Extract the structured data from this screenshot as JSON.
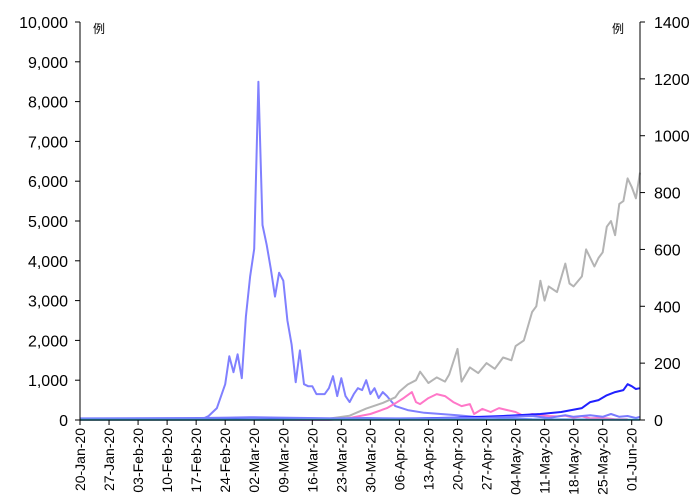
{
  "chart_data": {
    "type": "line",
    "y_left": {
      "unit_label": "例",
      "ticks": [
        "0",
        "1,000",
        "2,000",
        "3,000",
        "4,000",
        "5,000",
        "6,000",
        "7,000",
        "8,000",
        "9,000",
        "10,000"
      ],
      "ylim": [
        0,
        10000
      ]
    },
    "y_right": {
      "unit_label": "例",
      "ticks": [
        "0",
        "200",
        "400",
        "600",
        "800",
        "1000",
        "1200",
        "1400"
      ],
      "ylim": [
        0,
        1400
      ]
    },
    "x_ticks": [
      "20-Jan-20",
      "27-Jan-20",
      "03-Feb-20",
      "10-Feb-20",
      "17-Feb-20",
      "24-Feb-20",
      "02-Mar-20",
      "09-Mar-20",
      "16-Mar-20",
      "23-Mar-20",
      "30-Mar-20",
      "06-Apr-20",
      "13-Apr-20",
      "20-Apr-20",
      "27-Apr-20",
      "04-May-20",
      "11-May-20",
      "18-May-20",
      "25-May-20",
      "01-Jun-20"
    ],
    "xlim": [
      "20-Jan-20",
      "03-Jun-20"
    ],
    "grid": false,
    "series": [
      {
        "color": "#8080ff",
        "axis": "left",
        "points": [
          [
            "20-Jan-20",
            0
          ],
          [
            "18-Feb-20",
            0
          ],
          [
            "20-Feb-20",
            100
          ],
          [
            "22-Feb-20",
            300
          ],
          [
            "24-Feb-20",
            900
          ],
          [
            "25-Feb-20",
            1600
          ],
          [
            "26-Feb-20",
            1200
          ],
          [
            "27-Feb-20",
            1650
          ],
          [
            "28-Feb-20",
            1050
          ],
          [
            "29-Feb-20",
            2600
          ],
          [
            "01-Mar-20",
            3600
          ],
          [
            "02-Mar-20",
            4300
          ],
          [
            "03-Mar-20",
            8500
          ],
          [
            "04-Mar-20",
            4900
          ],
          [
            "05-Mar-20",
            4400
          ],
          [
            "06-Mar-20",
            3800
          ],
          [
            "07-Mar-20",
            3100
          ],
          [
            "08-Mar-20",
            3700
          ],
          [
            "09-Mar-20",
            3500
          ],
          [
            "10-Mar-20",
            2500
          ],
          [
            "11-Mar-20",
            1900
          ],
          [
            "12-Mar-20",
            950
          ],
          [
            "13-Mar-20",
            1750
          ],
          [
            "14-Mar-20",
            900
          ],
          [
            "15-Mar-20",
            850
          ],
          [
            "16-Mar-20",
            850
          ],
          [
            "17-Mar-20",
            650
          ],
          [
            "18-Mar-20",
            650
          ],
          [
            "19-Mar-20",
            650
          ],
          [
            "20-Mar-20",
            800
          ],
          [
            "21-Mar-20",
            1100
          ],
          [
            "22-Mar-20",
            600
          ],
          [
            "23-Mar-20",
            1050
          ],
          [
            "24-Mar-20",
            600
          ],
          [
            "25-Mar-20",
            450
          ],
          [
            "26-Mar-20",
            650
          ],
          [
            "27-Mar-20",
            800
          ],
          [
            "28-Mar-20",
            750
          ],
          [
            "29-Mar-20",
            1000
          ],
          [
            "30-Mar-20",
            650
          ],
          [
            "31-Mar-20",
            800
          ],
          [
            "01-Apr-20",
            550
          ],
          [
            "02-Apr-20",
            700
          ],
          [
            "03-Apr-20",
            600
          ],
          [
            "05-Apr-20",
            350
          ],
          [
            "08-Apr-20",
            250
          ],
          [
            "12-Apr-20",
            180
          ],
          [
            "16-Apr-20",
            150
          ],
          [
            "20-Apr-20",
            120
          ],
          [
            "24-Apr-20",
            80
          ],
          [
            "28-Apr-20",
            60
          ],
          [
            "02-May-20",
            40
          ],
          [
            "08-May-20",
            20
          ],
          [
            "31-May-20",
            10
          ]
        ]
      },
      {
        "color": "#ff77c8",
        "axis": "left",
        "points": [
          [
            "20-Jan-20",
            0
          ],
          [
            "20-Mar-20",
            0
          ],
          [
            "25-Mar-20",
            50
          ],
          [
            "30-Mar-20",
            150
          ],
          [
            "03-Apr-20",
            300
          ],
          [
            "05-Apr-20",
            420
          ],
          [
            "07-Apr-20",
            550
          ],
          [
            "09-Apr-20",
            700
          ],
          [
            "10-Apr-20",
            450
          ],
          [
            "11-Apr-20",
            400
          ],
          [
            "13-Apr-20",
            550
          ],
          [
            "15-Apr-20",
            650
          ],
          [
            "17-Apr-20",
            600
          ],
          [
            "19-Apr-20",
            450
          ],
          [
            "21-Apr-20",
            350
          ],
          [
            "23-Apr-20",
            400
          ],
          [
            "24-Apr-20",
            150
          ],
          [
            "26-Apr-20",
            280
          ],
          [
            "28-Apr-20",
            200
          ],
          [
            "30-Apr-20",
            300
          ],
          [
            "02-May-20",
            250
          ],
          [
            "04-May-20",
            200
          ],
          [
            "06-May-20",
            100
          ],
          [
            "08-May-20",
            150
          ],
          [
            "10-May-20",
            120
          ],
          [
            "12-May-20",
            100
          ],
          [
            "14-May-20",
            90
          ],
          [
            "16-May-20",
            110
          ],
          [
            "18-May-20",
            60
          ],
          [
            "20-May-20",
            90
          ],
          [
            "22-May-20",
            40
          ],
          [
            "24-May-20",
            50
          ],
          [
            "26-May-20",
            40
          ],
          [
            "28-May-20",
            20
          ],
          [
            "31-May-20",
            20
          ]
        ]
      },
      {
        "color": "#b4b4b4",
        "axis": "right",
        "points": [
          [
            "20-Jan-20",
            0
          ],
          [
            "10-Mar-20",
            0
          ],
          [
            "20-Mar-20",
            5
          ],
          [
            "25-Mar-20",
            15
          ],
          [
            "29-Mar-20",
            40
          ],
          [
            "02-Apr-20",
            60
          ],
          [
            "05-Apr-20",
            80
          ],
          [
            "06-Apr-20",
            100
          ],
          [
            "08-Apr-20",
            125
          ],
          [
            "10-Apr-20",
            140
          ],
          [
            "11-Apr-20",
            170
          ],
          [
            "13-Apr-20",
            130
          ],
          [
            "15-Apr-20",
            150
          ],
          [
            "17-Apr-20",
            135
          ],
          [
            "18-Apr-20",
            160
          ],
          [
            "20-Apr-20",
            250
          ],
          [
            "21-Apr-20",
            135
          ],
          [
            "23-Apr-20",
            185
          ],
          [
            "25-Apr-20",
            165
          ],
          [
            "27-Apr-20",
            200
          ],
          [
            "29-Apr-20",
            180
          ],
          [
            "01-May-20",
            220
          ],
          [
            "03-May-20",
            210
          ],
          [
            "04-May-20",
            260
          ],
          [
            "06-May-20",
            280
          ],
          [
            "08-May-20",
            380
          ],
          [
            "09-May-20",
            400
          ],
          [
            "10-May-20",
            490
          ],
          [
            "11-May-20",
            420
          ],
          [
            "12-May-20",
            470
          ],
          [
            "14-May-20",
            450
          ],
          [
            "16-May-20",
            550
          ],
          [
            "17-May-20",
            480
          ],
          [
            "18-May-20",
            470
          ],
          [
            "20-May-20",
            505
          ],
          [
            "21-May-20",
            600
          ],
          [
            "23-May-20",
            540
          ],
          [
            "24-May-20",
            570
          ],
          [
            "25-May-20",
            590
          ],
          [
            "26-May-20",
            680
          ],
          [
            "27-May-20",
            700
          ],
          [
            "28-May-20",
            650
          ],
          [
            "29-May-20",
            760
          ],
          [
            "30-May-20",
            770
          ],
          [
            "31-May-20",
            850
          ],
          [
            "01-Jun-20",
            820
          ],
          [
            "02-Jun-20",
            780
          ],
          [
            "03-Jun-20",
            870
          ]
        ]
      },
      {
        "color": "#2020ff",
        "axis": "left",
        "points": [
          [
            "20-Jan-20",
            15
          ],
          [
            "10-Mar-20",
            15
          ],
          [
            "25-Mar-20",
            30
          ],
          [
            "10-Apr-20",
            40
          ],
          [
            "20-Apr-20",
            60
          ],
          [
            "01-May-20",
            100
          ],
          [
            "10-May-20",
            150
          ],
          [
            "15-May-20",
            200
          ],
          [
            "20-May-20",
            300
          ],
          [
            "22-May-20",
            450
          ],
          [
            "24-May-20",
            500
          ],
          [
            "26-May-20",
            620
          ],
          [
            "28-May-20",
            700
          ],
          [
            "30-May-20",
            750
          ],
          [
            "31-May-20",
            900
          ],
          [
            "01-Jun-20",
            850
          ],
          [
            "02-Jun-20",
            780
          ],
          [
            "03-Jun-20",
            800
          ]
        ]
      },
      {
        "color": "#7a7aff",
        "axis": "left",
        "points": [
          [
            "20-Jan-20",
            40
          ],
          [
            "18-Feb-20",
            50
          ],
          [
            "25-Feb-20",
            60
          ],
          [
            "01-Mar-20",
            70
          ],
          [
            "08-Mar-20",
            60
          ],
          [
            "15-Mar-20",
            50
          ],
          [
            "22-Mar-20",
            40
          ],
          [
            "29-Mar-20",
            50
          ],
          [
            "05-Apr-20",
            40
          ],
          [
            "12-Apr-20",
            40
          ],
          [
            "19-Apr-20",
            50
          ],
          [
            "26-Apr-20",
            50
          ],
          [
            "03-May-20",
            80
          ],
          [
            "08-May-20",
            100
          ],
          [
            "12-May-20",
            50
          ],
          [
            "16-May-20",
            120
          ],
          [
            "18-May-20",
            80
          ],
          [
            "22-May-20",
            120
          ],
          [
            "25-May-20",
            80
          ],
          [
            "27-May-20",
            150
          ],
          [
            "29-May-20",
            80
          ],
          [
            "31-May-20",
            100
          ],
          [
            "02-Jun-20",
            50
          ],
          [
            "03-Jun-20",
            80
          ]
        ]
      },
      {
        "color": "#3cb4dc",
        "axis": "left",
        "points": [
          [
            "20-Jan-20",
            5
          ],
          [
            "03-Jun-20",
            5
          ]
        ]
      }
    ]
  }
}
